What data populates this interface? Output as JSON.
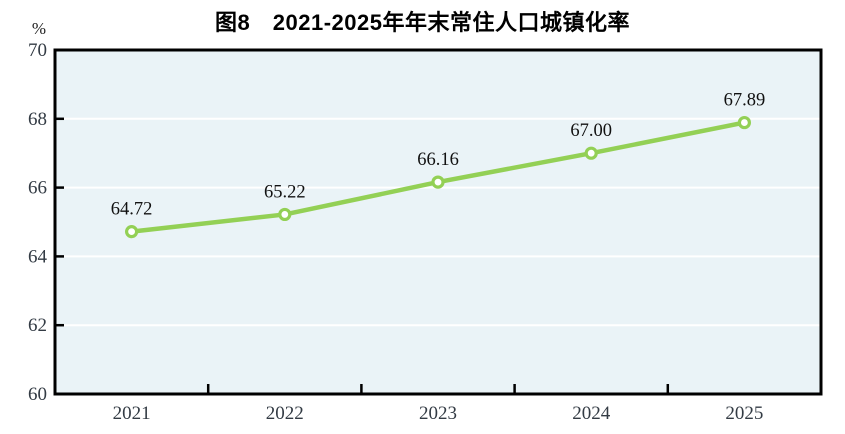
{
  "chart": {
    "title": "图8　2021-2025年年末常住人口城镇化率",
    "unit_label": "%"
  },
  "chart_data": {
    "type": "line",
    "title": "图8　2021-2025年年末常住人口城镇化率",
    "unit_label": "%",
    "categories": [
      "2021",
      "2022",
      "2023",
      "2024",
      "2025"
    ],
    "series": [
      {
        "name": "年末常住人口城镇化率",
        "values": [
          64.72,
          65.22,
          66.16,
          67.0,
          67.89
        ],
        "labels": [
          "64.72",
          "65.22",
          "66.16",
          "67.00",
          "67.89"
        ]
      }
    ],
    "xlabel": "",
    "ylabel": "%",
    "ylim": [
      60,
      70
    ],
    "yticks": [
      60,
      62,
      64,
      66,
      68,
      70
    ],
    "grid": true,
    "legend_position": "none",
    "colors": {
      "line": "#93d055",
      "marker_fill": "#ffffff",
      "plot_background": "#eaf3f7",
      "gridline": "#ffffff",
      "axis_frame": "#000000",
      "tick_label": "#333b44",
      "data_label": "#111111",
      "title": "#000000"
    }
  }
}
